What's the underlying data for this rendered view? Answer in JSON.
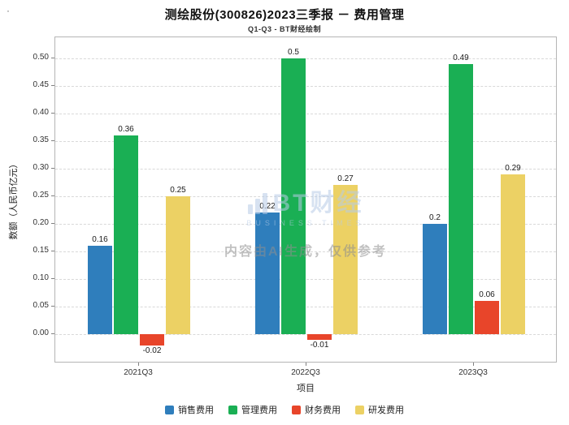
{
  "page": {
    "corner_mark": "·"
  },
  "chart_data": {
    "type": "bar",
    "title": "测绘股份(300826)2023三季报 － 费用管理",
    "subtitle": "Q1-Q3 - BT财经绘制",
    "xlabel": "项目",
    "ylabel": "数额（人民币亿元）",
    "categories": [
      "2021Q3",
      "2022Q3",
      "2023Q3"
    ],
    "series": [
      {
        "name": "销售费用",
        "color": "#2f7ebc",
        "values": [
          0.16,
          0.22,
          0.2
        ]
      },
      {
        "name": "管理费用",
        "color": "#1aaf54",
        "values": [
          0.36,
          0.5,
          0.49
        ]
      },
      {
        "name": "财务费用",
        "color": "#e8452a",
        "values": [
          -0.02,
          -0.01,
          0.06
        ]
      },
      {
        "name": "研发费用",
        "color": "#ecd164",
        "values": [
          0.25,
          0.27,
          0.29
        ]
      }
    ],
    "yticks": [
      0.0,
      0.05,
      0.1,
      0.15,
      0.2,
      0.25,
      0.3,
      0.35,
      0.4,
      0.45,
      0.5
    ],
    "ylim": [
      -0.053,
      0.538
    ],
    "grid": "horizontal-dashed",
    "legend_position": "bottom"
  },
  "watermark": {
    "logo_text": "BT财经",
    "logo_sub": "BUSINESS TIMES",
    "disclaimer": "内容由AI生成，仅供参考"
  }
}
